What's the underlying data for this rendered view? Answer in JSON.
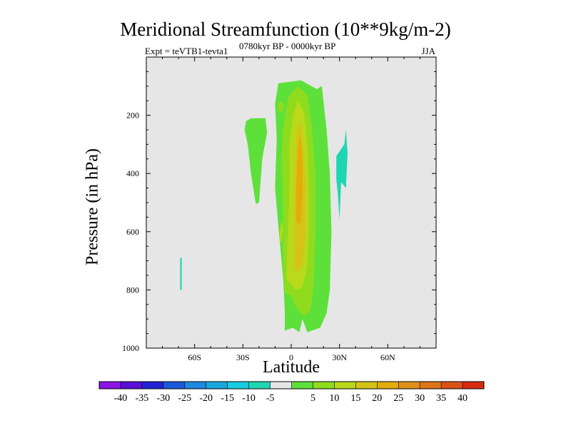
{
  "chart_data": {
    "type": "contour",
    "title": "Meridional Streamfunction (10**9kg/m-2)",
    "left_subtitle": "Expt = teVTB1-tevta1",
    "center_subtitle": "0780kyr BP - 0000kyr BP",
    "right_subtitle": "JJA",
    "xlabel": "Latitude",
    "ylabel": "Pressure (in hPa)",
    "xlim": [
      -90,
      90
    ],
    "ylim": [
      1000,
      0
    ],
    "x_ticks": [
      {
        "value": -60,
        "label": "60S"
      },
      {
        "value": -30,
        "label": "30S"
      },
      {
        "value": 0,
        "label": "0"
      },
      {
        "value": 30,
        "label": "30N"
      },
      {
        "value": 60,
        "label": "60N"
      }
    ],
    "y_ticks": [
      {
        "value": 200,
        "label": "200"
      },
      {
        "value": 400,
        "label": "400"
      },
      {
        "value": 600,
        "label": "600"
      },
      {
        "value": 800,
        "label": "800"
      },
      {
        "value": 1000,
        "label": "1000"
      }
    ],
    "background_color": "#e6e6e6",
    "colorbar": {
      "colors": [
        "#8c15e6",
        "#5a10d6",
        "#2222d4",
        "#1e5ad8",
        "#1f88e2",
        "#18a8e0",
        "#18cce0",
        "#1fd6b2",
        "#e6e6e6",
        "#5ee03a",
        "#8fdc1e",
        "#b9d91a",
        "#d5c416",
        "#e2ad0c",
        "#e0901a",
        "#de7418",
        "#dc5214",
        "#d82c10"
      ],
      "labels": [
        "-40",
        "-35",
        "-30",
        "-25",
        "-20",
        "-15",
        "-10",
        "-5",
        "5",
        "10",
        "15",
        "20",
        "25",
        "30",
        "35",
        "40"
      ]
    },
    "regions": [
      {
        "level": "5",
        "color": "#5ee03a",
        "points": [
          [
            -4,
            940
          ],
          [
            -4,
            870
          ],
          [
            -5,
            760
          ],
          [
            -8,
            580
          ],
          [
            -10,
            450
          ],
          [
            -9,
            280
          ],
          [
            -10,
            160
          ],
          [
            -8,
            90
          ],
          [
            6,
            80
          ],
          [
            16,
            110
          ],
          [
            19,
            100
          ],
          [
            20,
            150
          ],
          [
            22,
            250
          ],
          [
            24,
            400
          ],
          [
            25,
            600
          ],
          [
            24,
            800
          ],
          [
            22,
            880
          ],
          [
            18,
            930
          ],
          [
            10,
            945
          ],
          [
            7,
            900
          ],
          [
            5,
            945
          ],
          [
            1,
            930
          ]
        ]
      },
      {
        "level": "5",
        "color": "#5ee03a",
        "points": [
          [
            -28,
            220
          ],
          [
            -25,
            210
          ],
          [
            -16,
            210
          ],
          [
            -15,
            260
          ],
          [
            -18,
            350
          ],
          [
            -20,
            500
          ],
          [
            -22,
            505
          ],
          [
            -25,
            400
          ],
          [
            -27,
            300
          ],
          [
            -29,
            250
          ]
        ]
      },
      {
        "level": "10",
        "color": "#8fdc1e",
        "points": [
          [
            -4,
            810
          ],
          [
            -5,
            700
          ],
          [
            -5,
            500
          ],
          [
            -6,
            350
          ],
          [
            -5,
            250
          ],
          [
            -2,
            140
          ],
          [
            4,
            100
          ],
          [
            10,
            130
          ],
          [
            13,
            250
          ],
          [
            15,
            400
          ],
          [
            15,
            600
          ],
          [
            14,
            780
          ],
          [
            12,
            870
          ],
          [
            8,
            890
          ],
          [
            3,
            860
          ],
          [
            0,
            820
          ]
        ]
      },
      {
        "level": "10",
        "color": "#8fdc1e",
        "points": [
          [
            -8,
            160
          ],
          [
            -6,
            150
          ],
          [
            -4,
            170
          ],
          [
            -6,
            190
          ],
          [
            -8,
            185
          ]
        ]
      },
      {
        "level": "15",
        "color": "#b9d91a",
        "points": [
          [
            -3,
            760
          ],
          [
            -2,
            600
          ],
          [
            -1,
            450
          ],
          [
            -1,
            300
          ],
          [
            1,
            200
          ],
          [
            4,
            150
          ],
          [
            8,
            190
          ],
          [
            10,
            300
          ],
          [
            11,
            450
          ],
          [
            11,
            600
          ],
          [
            10,
            720
          ],
          [
            7,
            790
          ],
          [
            3,
            800
          ]
        ]
      },
      {
        "level": "20",
        "color": "#d5c416",
        "points": [
          [
            2,
            720
          ],
          [
            2,
            600
          ],
          [
            2,
            450
          ],
          [
            3,
            300
          ],
          [
            4,
            230
          ],
          [
            6,
            240
          ],
          [
            8,
            330
          ],
          [
            9,
            450
          ],
          [
            9,
            600
          ],
          [
            7,
            710
          ],
          [
            4,
            740
          ]
        ]
      },
      {
        "level": "25",
        "color": "#e2ad0c",
        "points": [
          [
            3,
            560
          ],
          [
            3,
            450
          ],
          [
            4,
            330
          ],
          [
            5,
            270
          ],
          [
            6,
            280
          ],
          [
            7,
            360
          ],
          [
            7,
            480
          ],
          [
            6,
            560
          ],
          [
            5,
            580
          ]
        ]
      },
      {
        "level": "15",
        "color": "#b9d91a",
        "points": [
          [
            -7,
            600
          ],
          [
            -6,
            560
          ],
          [
            -5,
            590
          ],
          [
            -6,
            640
          ],
          [
            -7,
            630
          ]
        ]
      },
      {
        "level": "-5",
        "color": "#1fd6b2",
        "points": [
          [
            28,
            340
          ],
          [
            33,
            300
          ],
          [
            34,
            250
          ],
          [
            35,
            330
          ],
          [
            34,
            450
          ],
          [
            31,
            430
          ],
          [
            30,
            560
          ],
          [
            29,
            470
          ],
          [
            28,
            420
          ]
        ]
      },
      {
        "level": "-5",
        "color": "#1fd6b2",
        "points": [
          [
            -69,
            690
          ],
          [
            -68,
            690
          ],
          [
            -68,
            800
          ],
          [
            -69,
            800
          ]
        ]
      }
    ]
  }
}
